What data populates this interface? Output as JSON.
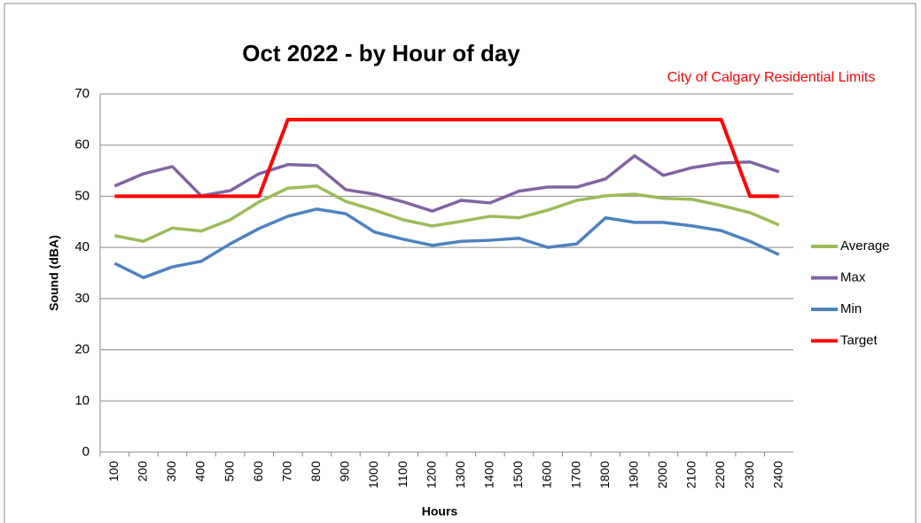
{
  "chart_data": {
    "type": "line",
    "title": "Oct 2022  - by Hour of day",
    "annotation": "City of Calgary Residential Limits",
    "y_label": "Sound (dBA)",
    "x_label": "Hours",
    "categories": [
      "100",
      "200",
      "300",
      "400",
      "500",
      "600",
      "700",
      "800",
      "900",
      "1000",
      "1100",
      "1200",
      "1300",
      "1400",
      "1500",
      "1600",
      "1700",
      "1800",
      "1900",
      "2000",
      "2100",
      "2200",
      "2300",
      "2400"
    ],
    "series": [
      {
        "name": "Average",
        "color": "#9bbb59",
        "values": [
          42.3,
          41.2,
          43.8,
          43.2,
          45.4,
          48.9,
          51.6,
          52.0,
          49.0,
          47.3,
          45.4,
          44.2,
          45.1,
          46.1,
          45.8,
          47.3,
          49.2,
          50.1,
          50.4,
          49.6,
          49.4,
          48.2,
          46.8,
          44.4
        ]
      },
      {
        "name": "Max",
        "color": "#8064a2",
        "values": [
          52.0,
          54.4,
          55.8,
          50.1,
          51.1,
          54.4,
          56.2,
          56.0,
          51.3,
          50.4,
          48.9,
          47.1,
          49.2,
          48.7,
          51.0,
          51.8,
          51.8,
          53.4,
          57.9,
          54.1,
          55.6,
          56.5,
          56.7,
          54.8
        ]
      },
      {
        "name": "Min",
        "color": "#4f81bd",
        "values": [
          36.9,
          34.1,
          36.2,
          37.3,
          40.7,
          43.7,
          46.1,
          47.5,
          46.6,
          43.0,
          41.6,
          40.4,
          41.2,
          41.4,
          41.8,
          40.0,
          40.7,
          45.8,
          44.9,
          44.9,
          44.2,
          43.3,
          41.2,
          38.6
        ]
      },
      {
        "name": "Target",
        "color": "#ff0000",
        "values": [
          50,
          50,
          50,
          50,
          50,
          50,
          65,
          65,
          65,
          65,
          65,
          65,
          65,
          65,
          65,
          65,
          65,
          65,
          65,
          65,
          65,
          65,
          50,
          50
        ]
      }
    ],
    "ylim": [
      0,
      70
    ],
    "yticks": [
      0,
      10,
      20,
      30,
      40,
      50,
      60,
      70
    ],
    "grid": true,
    "legend": "right"
  }
}
